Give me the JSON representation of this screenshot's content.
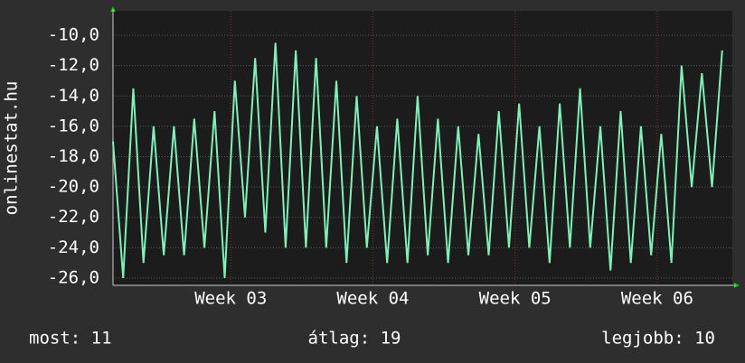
{
  "chart_data": {
    "type": "line",
    "ylabel": "onlinestat.hu",
    "x": [
      0,
      0.5,
      1,
      1.5,
      2,
      2.5,
      3,
      3.5,
      4,
      4.5,
      5,
      5.5,
      6,
      6.5,
      7,
      7.5,
      8,
      8.5,
      9,
      9.5,
      10,
      10.5,
      11,
      11.5,
      12,
      12.5,
      13,
      13.5,
      14,
      14.5,
      15,
      15.5,
      16,
      16.5,
      17,
      17.5,
      18,
      18.5,
      19,
      19.5,
      20,
      20.5,
      21,
      21.5,
      22,
      22.5,
      23,
      23.5,
      24,
      24.5,
      25,
      25.5,
      26,
      26.5,
      27,
      27.5,
      28,
      28.5,
      29,
      29.5,
      30
    ],
    "series": [
      {
        "color": "#80f0b8",
        "values": [
          -17,
          -26,
          -13.5,
          -25,
          -16,
          -24.5,
          -16,
          -24.5,
          -15.5,
          -24,
          -15,
          -26,
          -13,
          -22,
          -11.5,
          -23,
          -10.5,
          -24,
          -11,
          -24,
          -11.5,
          -24,
          -13,
          -25,
          -14,
          -24,
          -16,
          -25,
          -15.5,
          -25,
          -14,
          -24.5,
          -15.5,
          -25,
          -16,
          -24.5,
          -16.5,
          -24.5,
          -15,
          -24,
          -14.5,
          -24,
          -16,
          -25,
          -14.5,
          -24,
          -13.5,
          -24,
          -16,
          -25.5,
          -15,
          -25,
          -16,
          -24.5,
          -16.5,
          -25,
          -12,
          -20,
          -12.5,
          -20,
          -11
        ]
      }
    ],
    "xlim": [
      0,
      30.5
    ],
    "xticks": [
      {
        "value": 5.8,
        "label": "Week 03"
      },
      {
        "value": 12.8,
        "label": "Week 04"
      },
      {
        "value": 19.8,
        "label": "Week 05"
      },
      {
        "value": 26.8,
        "label": "Week 06"
      }
    ],
    "ylim": [
      -26.48,
      -8.39
    ],
    "yticks": [
      {
        "value": -26,
        "label": "-26,0"
      },
      {
        "value": -24,
        "label": "-24,0"
      },
      {
        "value": -22,
        "label": "-22,0"
      },
      {
        "value": -20,
        "label": "-20,0"
      },
      {
        "value": -18,
        "label": "-18,0"
      },
      {
        "value": -16,
        "label": "-16,0"
      },
      {
        "value": -14,
        "label": "-14,0"
      },
      {
        "value": -12,
        "label": "-12,0"
      },
      {
        "value": -10,
        "label": "-10,0"
      }
    ],
    "grid": true,
    "stats": [
      "most: 11",
      "átlag: 19",
      "legjobb: 10"
    ]
  }
}
